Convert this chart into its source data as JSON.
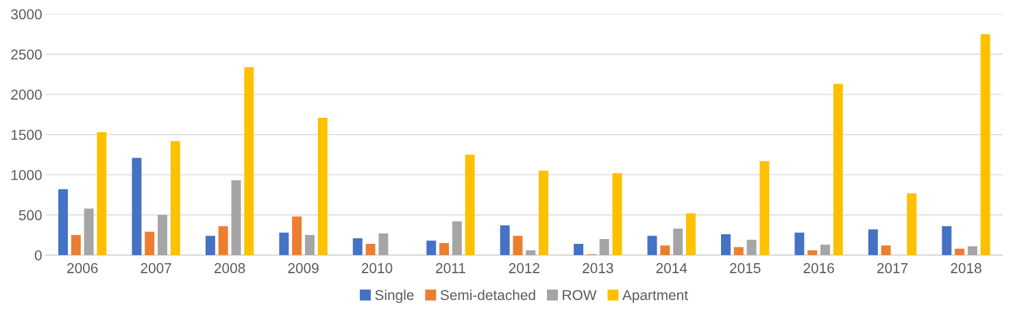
{
  "chart_data": {
    "type": "bar",
    "categories": [
      "2006",
      "2007",
      "2008",
      "2009",
      "2010",
      "2011",
      "2012",
      "2013",
      "2014",
      "2015",
      "2016",
      "2017",
      "2018"
    ],
    "series": [
      {
        "name": "Single",
        "color": "#4472c4",
        "values": [
          820,
          1210,
          240,
          280,
          210,
          180,
          370,
          140,
          240,
          260,
          280,
          320,
          360
        ]
      },
      {
        "name": "Semi-detached",
        "color": "#ed7d31",
        "values": [
          250,
          290,
          360,
          480,
          140,
          150,
          240,
          10,
          120,
          100,
          60,
          120,
          80
        ]
      },
      {
        "name": "ROW",
        "color": "#a5a5a5",
        "values": [
          580,
          500,
          930,
          250,
          270,
          420,
          60,
          200,
          330,
          190,
          130,
          0,
          110
        ]
      },
      {
        "name": "Apartment",
        "color": "#ffc000",
        "values": [
          1530,
          1420,
          2340,
          1710,
          0,
          1250,
          1050,
          1020,
          520,
          1170,
          2130,
          770,
          2750
        ]
      }
    ],
    "ylim": [
      0,
      3000
    ],
    "yticks": [
      0,
      500,
      1000,
      1500,
      2000,
      2500,
      3000
    ],
    "grid": "y",
    "legend": "bottom"
  }
}
